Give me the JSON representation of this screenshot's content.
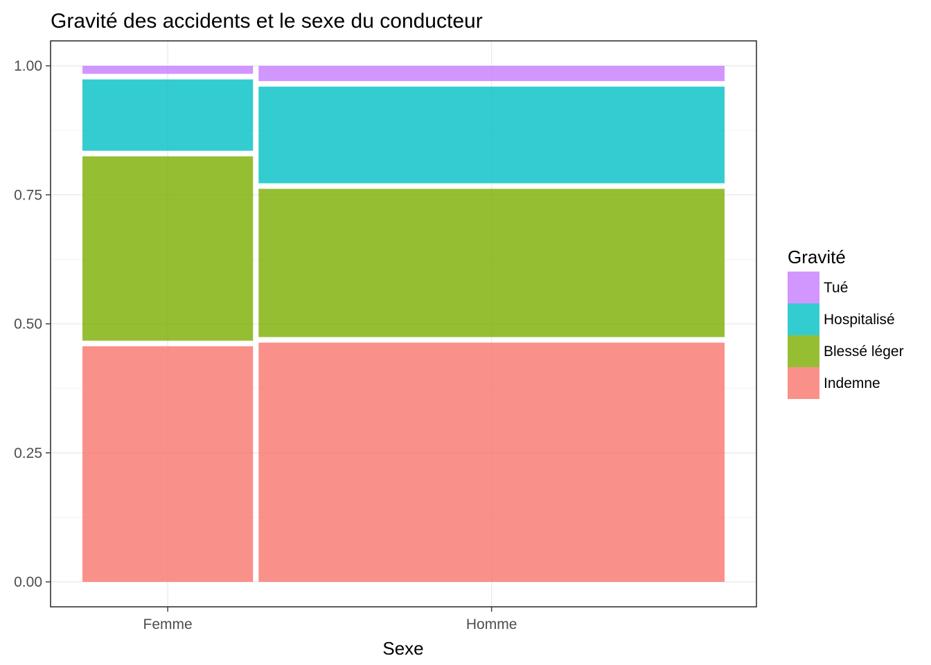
{
  "chart_data": {
    "type": "bar",
    "variant": "mosaic",
    "title": "Gravité des accidents et le sexe du conducteur",
    "xlabel": "Sexe",
    "ylabel": "",
    "ylim": [
      0,
      1
    ],
    "yticks": [
      "0.00",
      "0.25",
      "0.50",
      "0.75",
      "1.00"
    ],
    "grid": true,
    "legend_position": "right",
    "legend_title": "Gravité",
    "categories": [
      "Femme",
      "Homme"
    ],
    "category_widths": [
      0.27,
      0.73
    ],
    "series": [
      {
        "name": "Indemne",
        "color": "#F8766D",
        "values": [
          0.462,
          0.469
        ]
      },
      {
        "name": "Blessé léger",
        "color": "#7CAE00",
        "values": [
          0.368,
          0.298
        ]
      },
      {
        "name": "Hospitalisé",
        "color": "#00BFC4",
        "values": [
          0.149,
          0.198
        ]
      },
      {
        "name": "Tué",
        "color": "#C77CFF",
        "values": [
          0.021,
          0.035
        ]
      }
    ],
    "legend_order": [
      "Tué",
      "Hospitalisé",
      "Blessé léger",
      "Indemne"
    ]
  }
}
